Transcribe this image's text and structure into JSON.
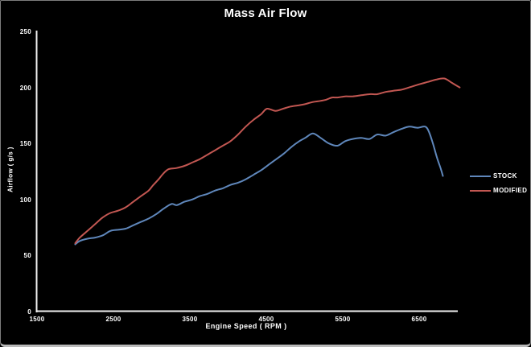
{
  "chart_data": {
    "type": "line",
    "title": "Mass Air Flow",
    "xlabel": "Engine Speed ( RPM )",
    "ylabel": "Airflow ( g/s )",
    "xlim": [
      1500,
      7000
    ],
    "ylim": [
      0,
      250
    ],
    "x_ticks": [
      1500,
      2500,
      3500,
      4500,
      5500,
      6500
    ],
    "y_ticks": [
      0,
      50,
      100,
      150,
      200,
      250
    ],
    "grid": false,
    "legend_position": "right-middle",
    "background_color": "#000000",
    "axis_color": "#f0f0f0",
    "text_color": "#ffffff",
    "series": [
      {
        "name": "STOCK",
        "color": "#5f87bb",
        "points": [
          [
            2000,
            60
          ],
          [
            2060,
            63
          ],
          [
            2160,
            65
          ],
          [
            2260,
            66
          ],
          [
            2360,
            68
          ],
          [
            2460,
            72
          ],
          [
            2560,
            73
          ],
          [
            2660,
            74
          ],
          [
            2760,
            77
          ],
          [
            2860,
            80
          ],
          [
            2960,
            83
          ],
          [
            3060,
            87
          ],
          [
            3160,
            92
          ],
          [
            3260,
            96
          ],
          [
            3330,
            95
          ],
          [
            3430,
            98
          ],
          [
            3530,
            100
          ],
          [
            3630,
            103
          ],
          [
            3730,
            105
          ],
          [
            3830,
            108
          ],
          [
            3930,
            110
          ],
          [
            4030,
            113
          ],
          [
            4130,
            115
          ],
          [
            4230,
            118
          ],
          [
            4330,
            122
          ],
          [
            4430,
            126
          ],
          [
            4530,
            131
          ],
          [
            4630,
            136
          ],
          [
            4730,
            141
          ],
          [
            4830,
            147
          ],
          [
            4930,
            152
          ],
          [
            5010,
            155
          ],
          [
            5110,
            159
          ],
          [
            5210,
            155
          ],
          [
            5320,
            150
          ],
          [
            5430,
            148
          ],
          [
            5530,
            152
          ],
          [
            5630,
            154
          ],
          [
            5740,
            155
          ],
          [
            5850,
            154
          ],
          [
            5950,
            158
          ],
          [
            6060,
            157
          ],
          [
            6160,
            160
          ],
          [
            6270,
            163
          ],
          [
            6370,
            165
          ],
          [
            6480,
            164
          ],
          [
            6580,
            165
          ],
          [
            6630,
            160
          ],
          [
            6680,
            150
          ],
          [
            6730,
            138
          ],
          [
            6780,
            128
          ],
          [
            6810,
            121
          ]
        ]
      },
      {
        "name": "MODIFIED",
        "color": "#c25752",
        "points": [
          [
            2000,
            61
          ],
          [
            2060,
            66
          ],
          [
            2160,
            72
          ],
          [
            2260,
            78
          ],
          [
            2360,
            84
          ],
          [
            2460,
            88
          ],
          [
            2560,
            90
          ],
          [
            2660,
            93
          ],
          [
            2760,
            98
          ],
          [
            2860,
            103
          ],
          [
            2960,
            108
          ],
          [
            3010,
            112
          ],
          [
            3090,
            118
          ],
          [
            3150,
            123
          ],
          [
            3220,
            127
          ],
          [
            3320,
            128
          ],
          [
            3430,
            130
          ],
          [
            3530,
            133
          ],
          [
            3630,
            136
          ],
          [
            3730,
            140
          ],
          [
            3830,
            144
          ],
          [
            3930,
            148
          ],
          [
            4030,
            152
          ],
          [
            4130,
            158
          ],
          [
            4230,
            165
          ],
          [
            4330,
            171
          ],
          [
            4430,
            176
          ],
          [
            4510,
            181
          ],
          [
            4620,
            179
          ],
          [
            4720,
            181
          ],
          [
            4820,
            183
          ],
          [
            4920,
            184
          ],
          [
            5000,
            185
          ],
          [
            5110,
            187
          ],
          [
            5210,
            188
          ],
          [
            5280,
            189
          ],
          [
            5360,
            191
          ],
          [
            5430,
            191
          ],
          [
            5530,
            192
          ],
          [
            5630,
            192
          ],
          [
            5740,
            193
          ],
          [
            5850,
            194
          ],
          [
            5950,
            194
          ],
          [
            6060,
            196
          ],
          [
            6160,
            197
          ],
          [
            6270,
            198
          ],
          [
            6370,
            200
          ],
          [
            6510,
            203
          ],
          [
            6620,
            205
          ],
          [
            6720,
            207
          ],
          [
            6830,
            208
          ],
          [
            6930,
            204
          ],
          [
            7030,
            200
          ]
        ]
      }
    ]
  }
}
